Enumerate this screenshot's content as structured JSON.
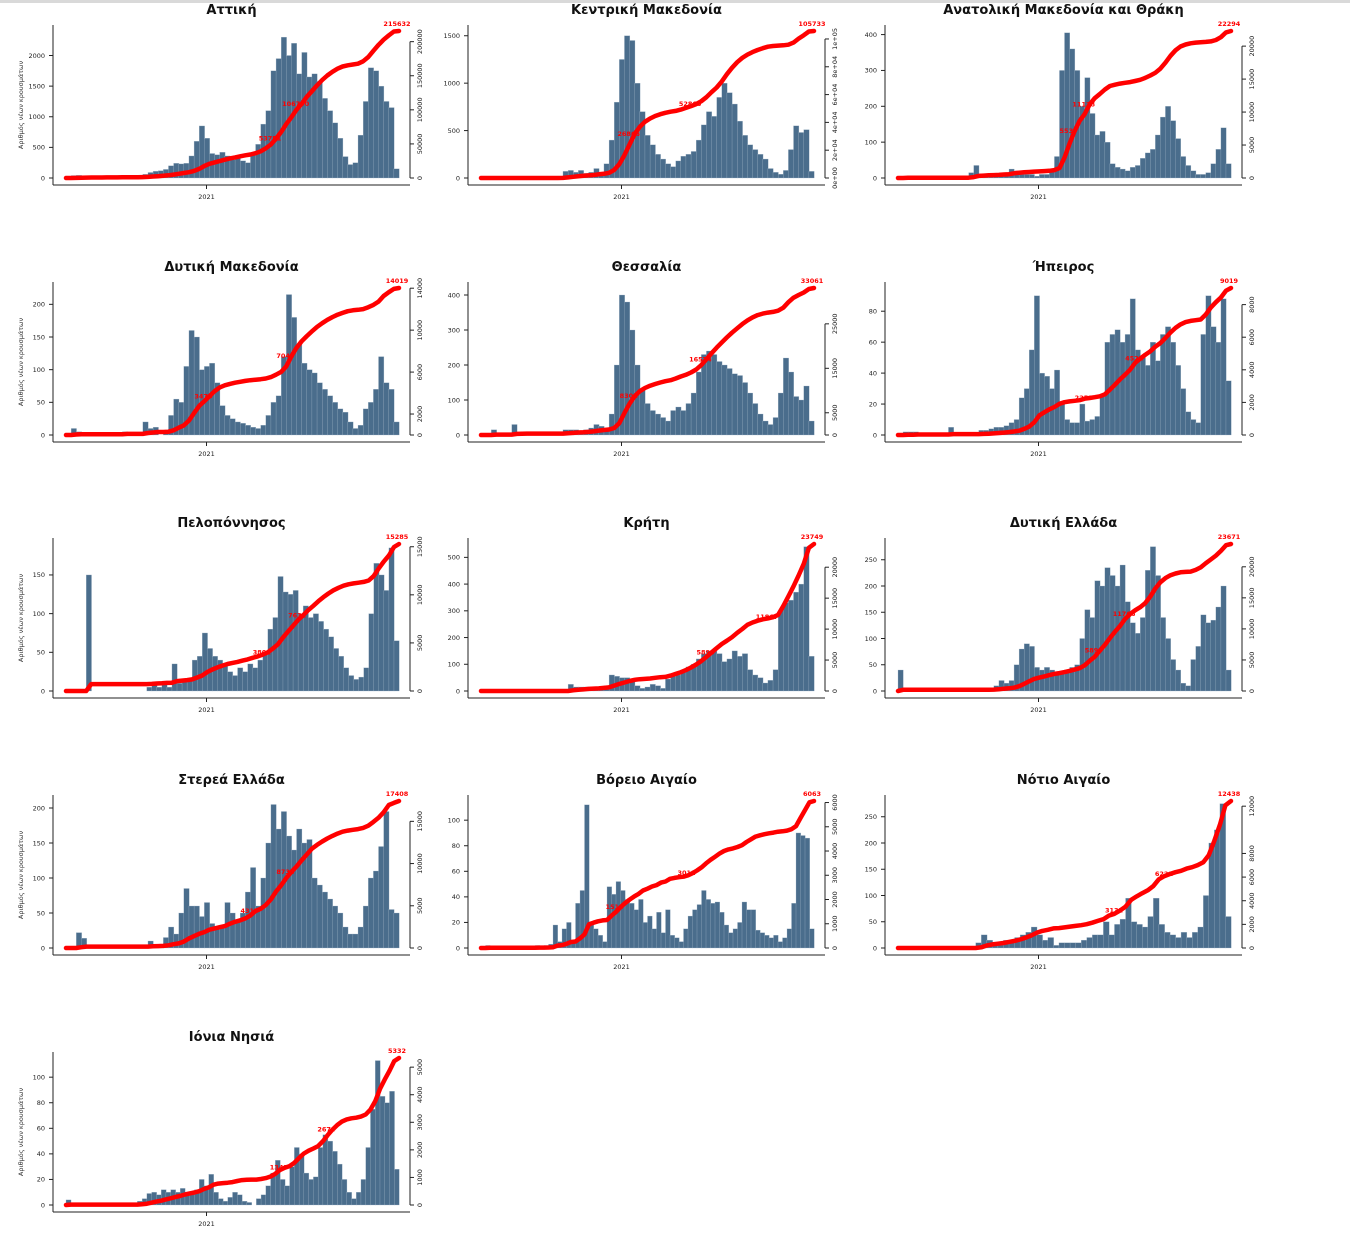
{
  "colors": {
    "bar": "#4a6d8c",
    "bar_edge": "#a9bccc",
    "cumulative": "#ff0000",
    "axis": "#222222"
  },
  "chart_data": [
    {
      "type": "bar",
      "title": "Αττική",
      "ylabel": "Αριθμός νέων κρουσμάτων",
      "xlabel": "",
      "x_tick": "2021",
      "ylim": [
        0,
        2400
      ],
      "y_ticks": [
        "0",
        "500",
        "1000",
        "1500",
        "2000"
      ],
      "y2lim": [
        0,
        215632
      ],
      "y2_ticks": [
        "0",
        "50000",
        "100000",
        "150000",
        "200000"
      ],
      "cumulative_labels": [
        "53751",
        "106790",
        "215632"
      ],
      "values": [
        0,
        40,
        45,
        30,
        20,
        15,
        10,
        10,
        10,
        10,
        10,
        10,
        15,
        20,
        30,
        60,
        90,
        110,
        120,
        140,
        200,
        240,
        230,
        240,
        360,
        600,
        850,
        650,
        400,
        380,
        420,
        360,
        300,
        320,
        280,
        250,
        380,
        550,
        880,
        1100,
        1750,
        1950,
        2300,
        2000,
        2200,
        1700,
        2050,
        1650,
        1700,
        1580,
        1300,
        1100,
        900,
        650,
        350,
        220,
        250,
        700,
        1250,
        1800,
        1750,
        1500,
        1250,
        1150,
        150
      ]
    },
    {
      "type": "bar",
      "title": "Κεντρική Μακεδονία",
      "ylabel": "",
      "xlabel": "",
      "x_tick": "2021",
      "ylim": [
        0,
        1550
      ],
      "y_ticks": [
        "0",
        "500",
        "1000",
        "1500"
      ],
      "y2lim": [
        0,
        105733
      ],
      "y2_ticks": [
        "0e+00",
        "2e+04",
        "4e+04",
        "6e+04",
        "8e+04",
        "1e+05"
      ],
      "cumulative_labels": [
        "26866",
        "52865",
        "105733"
      ],
      "values": [
        0,
        0,
        0,
        0,
        0,
        0,
        0,
        0,
        0,
        0,
        0,
        0,
        0,
        0,
        0,
        20,
        70,
        80,
        60,
        80,
        50,
        60,
        100,
        60,
        150,
        400,
        800,
        1250,
        1500,
        1450,
        1000,
        700,
        450,
        350,
        250,
        200,
        150,
        120,
        180,
        230,
        250,
        280,
        400,
        560,
        700,
        650,
        850,
        1000,
        900,
        780,
        600,
        450,
        350,
        300,
        250,
        200,
        100,
        60,
        40,
        80,
        300,
        550,
        480,
        510,
        70
      ]
    },
    {
      "type": "bar",
      "title": "Ανατολική Μακεδονία και Θράκη",
      "ylabel": "",
      "xlabel": "",
      "x_tick": "2021",
      "ylim": [
        0,
        410
      ],
      "y_ticks": [
        "0",
        "100",
        "200",
        "300",
        "400"
      ],
      "y2lim": [
        0,
        22294
      ],
      "y2_ticks": [
        "0",
        "5000",
        "10000",
        "15000",
        "20000"
      ],
      "cumulative_labels": [
        "5537",
        "11128",
        "22294"
      ],
      "values": [
        0,
        5,
        5,
        0,
        0,
        0,
        0,
        0,
        0,
        0,
        0,
        0,
        0,
        0,
        15,
        35,
        10,
        10,
        5,
        5,
        10,
        10,
        25,
        20,
        10,
        10,
        10,
        5,
        10,
        10,
        20,
        60,
        300,
        405,
        360,
        300,
        200,
        280,
        180,
        120,
        130,
        100,
        40,
        30,
        25,
        20,
        30,
        35,
        55,
        70,
        80,
        120,
        170,
        200,
        160,
        110,
        60,
        35,
        20,
        10,
        10,
        15,
        40,
        80,
        140,
        40
      ]
    },
    {
      "type": "bar",
      "title": "Δυτική Μακεδονία",
      "ylabel": "Αριθμός νέων κρουσμάτων",
      "xlabel": "",
      "x_tick": "2021",
      "ylim": [
        0,
        225
      ],
      "y_ticks": [
        "0",
        "50",
        "100",
        "150",
        "200"
      ],
      "y2lim": [
        0,
        14019
      ],
      "y2_ticks": [
        "0",
        "2000",
        "6000",
        "10000",
        "14000"
      ],
      "cumulative_labels": [
        "3470",
        "7040",
        "14019"
      ],
      "values": [
        0,
        10,
        5,
        3,
        0,
        0,
        0,
        0,
        0,
        0,
        0,
        5,
        0,
        0,
        0,
        20,
        10,
        12,
        0,
        5,
        30,
        55,
        50,
        105,
        160,
        150,
        100,
        105,
        110,
        80,
        45,
        30,
        25,
        20,
        18,
        15,
        12,
        10,
        15,
        30,
        50,
        60,
        120,
        215,
        180,
        140,
        110,
        100,
        95,
        80,
        70,
        60,
        50,
        40,
        35,
        20,
        10,
        15,
        40,
        50,
        70,
        120,
        80,
        70,
        20
      ]
    },
    {
      "type": "bar",
      "title": "Θεσσαλία",
      "ylabel": "",
      "xlabel": "",
      "x_tick": "2021",
      "ylim": [
        0,
        420
      ],
      "y_ticks": [
        "0",
        "100",
        "200",
        "300",
        "400"
      ],
      "y2lim": [
        0,
        33061
      ],
      "y2_ticks": [
        "0",
        "5000",
        "15000",
        "25000"
      ],
      "cumulative_labels": [
        "8301",
        "16574",
        "33061"
      ],
      "values": [
        0,
        0,
        15,
        0,
        0,
        0,
        30,
        5,
        5,
        0,
        0,
        0,
        0,
        0,
        0,
        0,
        15,
        15,
        15,
        10,
        15,
        20,
        30,
        25,
        20,
        60,
        200,
        400,
        380,
        300,
        200,
        130,
        90,
        70,
        60,
        50,
        40,
        70,
        80,
        70,
        90,
        120,
        180,
        230,
        240,
        230,
        210,
        200,
        190,
        175,
        170,
        150,
        120,
        90,
        60,
        40,
        30,
        50,
        120,
        220,
        180,
        110,
        100,
        140,
        40
      ]
    },
    {
      "type": "bar",
      "title": "Ήπειρος",
      "ylabel": "",
      "xlabel": "",
      "x_tick": "2021",
      "ylim": [
        0,
        95
      ],
      "y_ticks": [
        "0",
        "20",
        "40",
        "60",
        "80"
      ],
      "y2lim": [
        0,
        9019
      ],
      "y2_ticks": [
        "0",
        "2000",
        "4000",
        "6000",
        "8000"
      ],
      "cumulative_labels": [
        "2259",
        "4522",
        "9019"
      ],
      "values": [
        0,
        2,
        2,
        2,
        0,
        0,
        0,
        0,
        0,
        0,
        5,
        0,
        0,
        0,
        0,
        0,
        3,
        3,
        4,
        5,
        5,
        6,
        8,
        10,
        24,
        30,
        55,
        90,
        40,
        38,
        30,
        42,
        20,
        10,
        8,
        8,
        20,
        9,
        10,
        12,
        25,
        60,
        65,
        68,
        60,
        65,
        88,
        55,
        50,
        45,
        60,
        48,
        65,
        70,
        60,
        45,
        30,
        15,
        10,
        8,
        65,
        90,
        70,
        60,
        88,
        35
      ]
    },
    {
      "type": "bar",
      "title": "Πελοπόννησος",
      "ylabel": "Αριθμός νέων κρουσμάτων",
      "xlabel": "",
      "x_tick": "2021",
      "ylim": [
        0,
        190
      ],
      "y_ticks": [
        "0",
        "50",
        "100",
        "150"
      ],
      "y2lim": [
        0,
        15285
      ],
      "y2_ticks": [
        "0",
        "5000",
        "10000",
        "15000"
      ],
      "cumulative_labels": [
        "3801",
        "7631",
        "15285"
      ],
      "values": [
        0,
        0,
        0,
        0,
        150,
        0,
        0,
        0,
        0,
        0,
        0,
        0,
        0,
        0,
        0,
        0,
        5,
        8,
        5,
        8,
        5,
        35,
        10,
        12,
        15,
        40,
        45,
        75,
        55,
        45,
        40,
        35,
        25,
        20,
        30,
        25,
        35,
        30,
        40,
        50,
        80,
        95,
        148,
        128,
        125,
        130,
        100,
        110,
        95,
        100,
        90,
        80,
        70,
        55,
        45,
        30,
        20,
        15,
        18,
        30,
        100,
        165,
        150,
        130,
        185,
        65
      ]
    },
    {
      "type": "bar",
      "title": "Κρήτη",
      "ylabel": "",
      "xlabel": "",
      "x_tick": "2021",
      "ylim": [
        0,
        550
      ],
      "y_ticks": [
        "0",
        "100",
        "200",
        "300",
        "400",
        "500"
      ],
      "y2lim": [
        0,
        23749
      ],
      "y2_ticks": [
        "0",
        "5000",
        "10000",
        "15000",
        "20000"
      ],
      "cumulative_labels": [
        "5898",
        "11867",
        "23749"
      ],
      "values": [
        0,
        0,
        0,
        0,
        0,
        0,
        0,
        0,
        0,
        0,
        0,
        0,
        0,
        0,
        0,
        0,
        0,
        25,
        15,
        15,
        15,
        10,
        10,
        15,
        20,
        60,
        55,
        50,
        50,
        40,
        20,
        10,
        15,
        25,
        20,
        10,
        45,
        55,
        60,
        70,
        90,
        100,
        120,
        140,
        150,
        150,
        140,
        110,
        120,
        150,
        130,
        140,
        80,
        60,
        50,
        30,
        40,
        80,
        300,
        330,
        340,
        370,
        400,
        540,
        130
      ]
    },
    {
      "type": "bar",
      "title": "Δυτική Ελλάδα",
      "ylabel": "",
      "xlabel": "",
      "x_tick": "2021",
      "ylim": [
        0,
        280
      ],
      "y_ticks": [
        "0",
        "50",
        "100",
        "150",
        "200",
        "250"
      ],
      "y2lim": [
        0,
        23671
      ],
      "y2_ticks": [
        "0",
        "5000",
        "10000",
        "15000",
        "20000"
      ],
      "cumulative_labels": [
        "5899",
        "11766",
        "23671"
      ],
      "values": [
        40,
        0,
        0,
        0,
        0,
        0,
        0,
        0,
        0,
        0,
        0,
        0,
        0,
        0,
        0,
        0,
        0,
        5,
        5,
        10,
        20,
        15,
        20,
        50,
        80,
        90,
        85,
        45,
        40,
        45,
        40,
        30,
        35,
        40,
        45,
        50,
        100,
        155,
        140,
        210,
        200,
        235,
        220,
        200,
        240,
        170,
        130,
        110,
        140,
        230,
        275,
        220,
        140,
        100,
        60,
        40,
        15,
        10,
        60,
        85,
        145,
        130,
        135,
        160,
        200,
        40
      ]
    },
    {
      "type": "bar",
      "title": "Στερεά Ελλάδα",
      "ylabel": "Αριθμός νέων κρουσμάτων",
      "xlabel": "",
      "x_tick": "2021",
      "ylim": [
        0,
        210
      ],
      "y_ticks": [
        "0",
        "50",
        "100",
        "150",
        "200"
      ],
      "y2lim": [
        0,
        17408
      ],
      "y2_ticks": [
        "0",
        "5000",
        "10000",
        "15000"
      ],
      "cumulative_labels": [
        "4317",
        "8736",
        "17408"
      ],
      "values": [
        0,
        0,
        22,
        14,
        0,
        0,
        0,
        0,
        0,
        0,
        0,
        0,
        0,
        0,
        0,
        0,
        10,
        5,
        5,
        15,
        30,
        20,
        50,
        85,
        60,
        60,
        45,
        65,
        35,
        30,
        30,
        65,
        50,
        40,
        50,
        80,
        115,
        60,
        100,
        150,
        205,
        170,
        195,
        160,
        140,
        170,
        150,
        155,
        100,
        90,
        80,
        70,
        60,
        50,
        30,
        20,
        20,
        30,
        60,
        100,
        110,
        145,
        195,
        55,
        50
      ]
    },
    {
      "type": "bar",
      "title": "Βόρειο Αιγαίο",
      "ylabel": "",
      "xlabel": "",
      "x_tick": "2021",
      "ylim": [
        0,
        115
      ],
      "y_ticks": [
        "0",
        "20",
        "40",
        "60",
        "80",
        "100"
      ],
      "y2lim": [
        0,
        6063
      ],
      "y2_ticks": [
        "0",
        "1000",
        "2000",
        "3000",
        "4000",
        "5000",
        "6000"
      ],
      "cumulative_labels": [
        "1516",
        "3011",
        "6063"
      ],
      "values": [
        0,
        2,
        0,
        0,
        0,
        0,
        0,
        0,
        0,
        0,
        0,
        0,
        2,
        0,
        2,
        3,
        18,
        5,
        15,
        20,
        5,
        35,
        45,
        112,
        18,
        15,
        10,
        5,
        48,
        42,
        52,
        45,
        38,
        35,
        30,
        38,
        20,
        25,
        15,
        28,
        12,
        30,
        10,
        8,
        5,
        15,
        25,
        30,
        34,
        45,
        38,
        35,
        36,
        28,
        18,
        12,
        15,
        20,
        36,
        30,
        30,
        14,
        12,
        10,
        8,
        10,
        5,
        8,
        15,
        35,
        90,
        88,
        86,
        15
      ]
    },
    {
      "type": "bar",
      "title": "Νότιο Αιγαίο",
      "ylabel": "",
      "xlabel": "",
      "x_tick": "2021",
      "ylim": [
        0,
        280
      ],
      "y_ticks": [
        "0",
        "50",
        "100",
        "150",
        "200",
        "250"
      ],
      "y2lim": [
        0,
        12438
      ],
      "y2_ticks": [
        "0",
        "2000",
        "4000",
        "6000",
        "8000",
        "12000"
      ],
      "cumulative_labels": [
        "3132",
        "6221",
        "12438"
      ],
      "values": [
        0,
        0,
        0,
        0,
        0,
        0,
        0,
        0,
        0,
        0,
        0,
        0,
        0,
        0,
        10,
        25,
        15,
        10,
        10,
        15,
        15,
        20,
        25,
        30,
        40,
        25,
        15,
        20,
        5,
        10,
        10,
        10,
        10,
        15,
        20,
        25,
        25,
        50,
        25,
        45,
        55,
        95,
        50,
        45,
        40,
        60,
        95,
        45,
        30,
        25,
        20,
        30,
        20,
        30,
        40,
        100,
        200,
        225,
        275,
        60
      ]
    },
    {
      "type": "bar",
      "title": "Ιόνια Νησιά",
      "ylabel": "Αριθμός νέων κρουσμάτων",
      "xlabel": "",
      "x_tick": "2021",
      "ylim": [
        0,
        115
      ],
      "y_ticks": [
        "0",
        "20",
        "40",
        "60",
        "80",
        "100"
      ],
      "y2lim": [
        0,
        5332
      ],
      "y2_ticks": [
        "0",
        "1000",
        "2000",
        "3000",
        "4000",
        "5000"
      ],
      "cumulative_labels": [
        "1343",
        "2674",
        "5332"
      ],
      "values": [
        4,
        0,
        0,
        0,
        0,
        0,
        0,
        0,
        0,
        0,
        0,
        0,
        0,
        0,
        0,
        3,
        5,
        9,
        10,
        8,
        12,
        10,
        12,
        10,
        13,
        10,
        8,
        12,
        20,
        15,
        24,
        10,
        5,
        3,
        6,
        10,
        8,
        3,
        2,
        0,
        5,
        8,
        15,
        25,
        35,
        20,
        15,
        30,
        45,
        40,
        25,
        20,
        22,
        45,
        55,
        50,
        42,
        32,
        20,
        10,
        5,
        10,
        20,
        45,
        75,
        113,
        85,
        80,
        89,
        28
      ]
    }
  ]
}
